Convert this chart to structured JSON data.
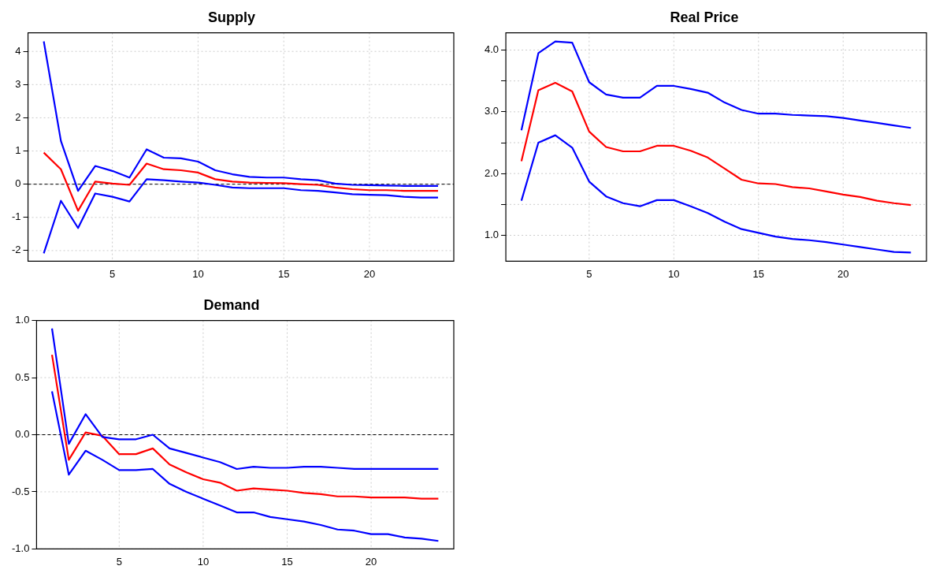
{
  "chart_data": [
    {
      "type": "line",
      "title": "Supply",
      "x": [
        1,
        2,
        3,
        4,
        5,
        6,
        7,
        8,
        9,
        10,
        11,
        12,
        13,
        14,
        15,
        16,
        17,
        18,
        19,
        20,
        21,
        22,
        23,
        24
      ],
      "xlim": [
        0.08,
        24.92
      ],
      "xticks": [
        5,
        10,
        15,
        20
      ],
      "ylim": [
        -2.32,
        4.56
      ],
      "yticks": [
        -2,
        -1,
        0,
        1,
        2,
        3,
        4
      ],
      "grid": true,
      "line_style": "solid",
      "marker": "none",
      "legend": false,
      "ref_lines": [
        {
          "axis": "y",
          "value": 0,
          "color": "#000000",
          "line_style": "dashed"
        }
      ],
      "series": [
        {
          "color": "#0000ff",
          "values": [
            4.3,
            1.3,
            -0.2,
            0.55,
            0.4,
            0.2,
            1.05,
            0.8,
            0.78,
            0.68,
            0.42,
            0.3,
            0.22,
            0.2,
            0.2,
            0.15,
            0.12,
            0.02,
            -0.02,
            -0.03,
            -0.04,
            -0.05,
            -0.05,
            -0.05
          ]
        },
        {
          "color": "#ff0000",
          "values": [
            0.95,
            0.45,
            -0.8,
            0.08,
            0.02,
            -0.02,
            0.62,
            0.45,
            0.42,
            0.35,
            0.15,
            0.08,
            0.05,
            0.04,
            0.03,
            0.0,
            -0.02,
            -0.1,
            -0.15,
            -0.18,
            -0.18,
            -0.2,
            -0.2,
            -0.2
          ]
        },
        {
          "color": "#0000ff",
          "values": [
            -2.08,
            -0.5,
            -1.32,
            -0.28,
            -0.38,
            -0.52,
            0.15,
            0.12,
            0.08,
            0.05,
            -0.02,
            -0.1,
            -0.12,
            -0.12,
            -0.12,
            -0.18,
            -0.2,
            -0.25,
            -0.3,
            -0.32,
            -0.33,
            -0.38,
            -0.4,
            -0.4
          ]
        }
      ]
    },
    {
      "type": "line",
      "title": "Real Price",
      "x": [
        1,
        2,
        3,
        4,
        5,
        6,
        7,
        8,
        9,
        10,
        11,
        12,
        13,
        14,
        15,
        16,
        17,
        18,
        19,
        20,
        21,
        22,
        23,
        24
      ],
      "xlim": [
        0.08,
        24.92
      ],
      "xticks": [
        5,
        10,
        15,
        20
      ],
      "ylim": [
        0.58,
        4.28
      ],
      "yticks": [
        {
          "value": 1,
          "label": "1.0"
        },
        {
          "value": 1.5,
          "label": null
        },
        {
          "value": 2,
          "label": "2.0"
        },
        {
          "value": 2.5,
          "label": null
        },
        {
          "value": 3,
          "label": "3.0"
        },
        {
          "value": 3.5,
          "label": null
        },
        {
          "value": 4,
          "label": "4.0"
        }
      ],
      "grid": true,
      "line_style": "solid",
      "marker": "none",
      "legend": false,
      "series": [
        {
          "color": "#0000ff",
          "values": [
            2.7,
            3.95,
            4.14,
            4.12,
            3.48,
            3.28,
            3.23,
            3.23,
            3.42,
            3.42,
            3.37,
            3.31,
            3.15,
            3.03,
            2.97,
            2.97,
            2.95,
            2.94,
            2.93,
            2.9,
            2.86,
            2.82,
            2.78,
            2.74
          ]
        },
        {
          "color": "#ff0000",
          "values": [
            2.2,
            3.35,
            3.47,
            3.33,
            2.68,
            2.43,
            2.36,
            2.36,
            2.45,
            2.45,
            2.37,
            2.26,
            2.08,
            1.9,
            1.84,
            1.83,
            1.78,
            1.76,
            1.71,
            1.66,
            1.62,
            1.56,
            1.52,
            1.49
          ]
        },
        {
          "color": "#0000ff",
          "values": [
            1.56,
            2.5,
            2.62,
            2.42,
            1.87,
            1.63,
            1.52,
            1.47,
            1.57,
            1.57,
            1.47,
            1.36,
            1.22,
            1.1,
            1.04,
            0.98,
            0.94,
            0.92,
            0.89,
            0.85,
            0.81,
            0.77,
            0.73,
            0.72
          ]
        }
      ]
    },
    {
      "type": "line",
      "title": "Demand",
      "x": [
        1,
        2,
        3,
        4,
        5,
        6,
        7,
        8,
        9,
        10,
        11,
        12,
        13,
        14,
        15,
        16,
        17,
        18,
        19,
        20,
        21,
        22,
        23,
        24
      ],
      "xlim": [
        0.08,
        24.92
      ],
      "xticks": [
        5,
        10,
        15,
        20
      ],
      "ylim": [
        -1.0,
        1.0
      ],
      "yticks": [
        {
          "value": -1,
          "label": "-1.0"
        },
        {
          "value": -0.5,
          "label": "-0.5"
        },
        {
          "value": 0,
          "label": "0.0"
        },
        {
          "value": 0.5,
          "label": "0.5"
        },
        {
          "value": 1,
          "label": "1.0"
        }
      ],
      "grid": true,
      "line_style": "solid",
      "marker": "none",
      "legend": false,
      "ref_lines": [
        {
          "axis": "y",
          "value": 0,
          "color": "#000000",
          "line_style": "dashed"
        }
      ],
      "series": [
        {
          "color": "#0000ff",
          "values": [
            0.93,
            -0.08,
            0.18,
            -0.02,
            -0.04,
            -0.04,
            0.0,
            -0.12,
            -0.16,
            -0.2,
            -0.24,
            -0.3,
            -0.28,
            -0.29,
            -0.29,
            -0.28,
            -0.28,
            -0.29,
            -0.3,
            -0.3,
            -0.3,
            -0.3,
            -0.3,
            -0.3
          ]
        },
        {
          "color": "#ff0000",
          "values": [
            0.7,
            -0.22,
            0.02,
            -0.01,
            -0.17,
            -0.17,
            -0.12,
            -0.26,
            -0.33,
            -0.39,
            -0.42,
            -0.49,
            -0.47,
            -0.48,
            -0.49,
            -0.51,
            -0.52,
            -0.54,
            -0.54,
            -0.55,
            -0.55,
            -0.55,
            -0.56,
            -0.56
          ]
        },
        {
          "color": "#0000ff",
          "values": [
            0.38,
            -0.35,
            -0.14,
            -0.22,
            -0.31,
            -0.31,
            -0.3,
            -0.43,
            -0.5,
            -0.56,
            -0.62,
            -0.68,
            -0.68,
            -0.72,
            -0.74,
            -0.76,
            -0.79,
            -0.83,
            -0.84,
            -0.87,
            -0.87,
            -0.9,
            -0.91,
            -0.93
          ]
        }
      ]
    }
  ]
}
